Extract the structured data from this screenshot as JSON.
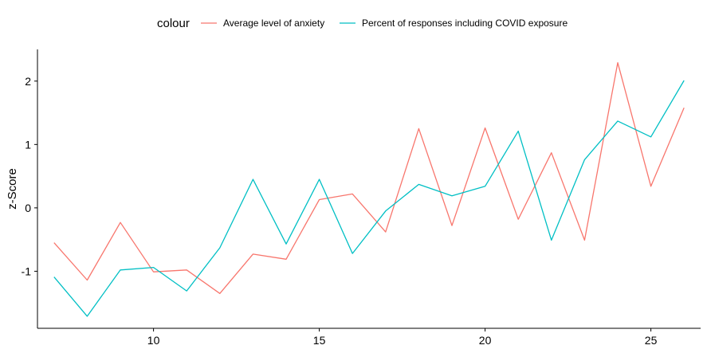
{
  "chart_data": {
    "type": "line",
    "title": "",
    "xlabel": "",
    "ylabel": "z-Score",
    "xlim": [
      6.5,
      26.5
    ],
    "ylim": [
      -1.9,
      2.5
    ],
    "xticks": [
      10,
      15,
      20,
      25
    ],
    "yticks": [
      -1,
      0,
      1,
      2
    ],
    "x": [
      7,
      8,
      9,
      10,
      11,
      12,
      13,
      14,
      15,
      16,
      17,
      18,
      19,
      20,
      21,
      22,
      23,
      24,
      25,
      26
    ],
    "legend": {
      "title": "colour",
      "position": "top"
    },
    "series": [
      {
        "name": "Average level of anxiety",
        "color": "#F8766D",
        "values": [
          -0.55,
          -1.14,
          -0.23,
          -1.01,
          -0.98,
          -1.35,
          -0.73,
          -0.81,
          0.13,
          0.22,
          -0.38,
          1.25,
          -0.28,
          1.26,
          -0.18,
          0.87,
          -0.51,
          2.29,
          0.34,
          1.58
        ]
      },
      {
        "name": "Percent of responses including COVID exposure",
        "color": "#00BFC4",
        "values": [
          -1.09,
          -1.71,
          -0.98,
          -0.94,
          -1.31,
          -0.63,
          0.45,
          -0.57,
          0.45,
          -0.72,
          -0.05,
          0.37,
          0.19,
          0.34,
          1.21,
          -0.51,
          0.76,
          1.37,
          1.12,
          2.01
        ]
      }
    ],
    "grid": false
  }
}
